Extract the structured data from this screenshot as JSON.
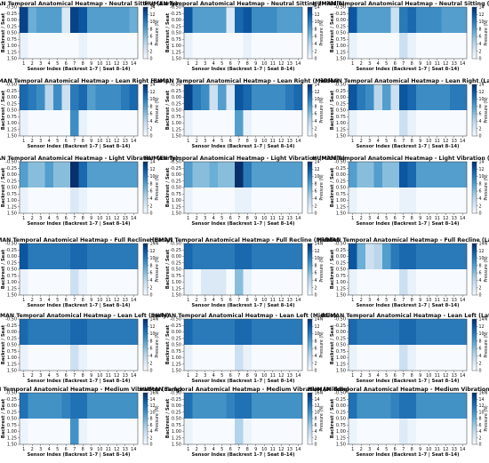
{
  "figure": {
    "xlabel": "Sensor Index (Backrest 1–7 | Seat 8–14)",
    "ylabel": "Backrest / Seat",
    "colorbar_label": "Pressure (N)",
    "colormap": [
      "#f7fbff",
      "#deebf7",
      "#c6dbef",
      "#9ecae1",
      "#6baed6",
      "#4292c6",
      "#2171b5",
      "#08519c",
      "#08306b"
    ],
    "x_ticks": [
      "1",
      "2",
      "3",
      "4",
      "5",
      "6",
      "7",
      "8",
      "9",
      "10",
      "11",
      "12",
      "13",
      "14"
    ],
    "y_ticks": [
      "-0.50",
      "-0.25",
      "0.00",
      "0.25",
      "0.50",
      "0.75",
      "1.00",
      "1.25",
      "1.50"
    ]
  },
  "chart_data": [
    {
      "type": "heatmap",
      "title": "HUMAN Temporal Anatomical Heatmap - Neutral Sitting (Early)",
      "colorbar_ticks": [
        "0",
        "2",
        "4",
        "6",
        "8",
        "10",
        "12",
        "14"
      ],
      "vmax": 14,
      "rows": [
        [
          13,
          7,
          8,
          8,
          8,
          2,
          13,
          12,
          8,
          8,
          8,
          8,
          8,
          7
        ],
        [
          1,
          0,
          0,
          0,
          0,
          0,
          0,
          1,
          0,
          0,
          0,
          0,
          0,
          0
        ]
      ]
    },
    {
      "type": "heatmap",
      "title": "HUMAN Temporal Anatomical Heatmap - Neutral Sitting (Middle)",
      "colorbar_ticks": [
        "0",
        "2",
        "4",
        "6",
        "8",
        "10",
        "12",
        "14"
      ],
      "vmax": 14,
      "rows": [
        [
          12,
          8,
          8,
          8,
          8,
          2,
          11,
          12,
          9,
          9,
          9,
          8,
          8,
          8
        ],
        [
          1,
          0,
          0,
          0,
          0,
          0,
          0,
          1,
          0,
          0,
          0,
          0,
          0,
          0
        ]
      ]
    },
    {
      "type": "heatmap",
      "title": "HUMAN Temporal Anatomical Heatmap - Neutral Sitting (Late)",
      "colorbar_ticks": [
        "0",
        "2",
        "4",
        "6",
        "8",
        "10",
        "12",
        "14"
      ],
      "vmax": 14,
      "rows": [
        [
          12,
          8,
          8,
          8,
          8,
          3,
          10,
          11,
          9,
          9,
          9,
          8,
          8,
          8
        ],
        [
          1,
          0,
          0,
          0,
          0,
          0,
          3,
          1,
          0,
          0,
          0,
          0,
          0,
          0
        ]
      ]
    },
    {
      "type": "heatmap",
      "title": "HUMAN Temporal Anatomical Heatmap - Lean Right (Early)",
      "colorbar_ticks": [
        "0",
        "2",
        "4",
        "6",
        "8",
        "10",
        "12",
        "14"
      ],
      "vmax": 14,
      "rows": [
        [
          11,
          10,
          9,
          4,
          9,
          3,
          10,
          11,
          8,
          9,
          9,
          9,
          10,
          11
        ],
        [
          1,
          0,
          0,
          0,
          0,
          0,
          9,
          1,
          0,
          0,
          0,
          0,
          0,
          0
        ]
      ]
    },
    {
      "type": "heatmap",
      "title": "HUMAN Temporal Anatomical Heatmap - Lean Right (Middle)",
      "colorbar_ticks": [
        "0",
        "2",
        "4",
        "6",
        "8",
        "10",
        "12",
        "14"
      ],
      "vmax": 14,
      "rows": [
        [
          13,
          10,
          9,
          3,
          8,
          2,
          12,
          11,
          9,
          9,
          9,
          9,
          10,
          11
        ],
        [
          1,
          0,
          0,
          0,
          0,
          0,
          8,
          1,
          0,
          0,
          0,
          0,
          0,
          0
        ]
      ]
    },
    {
      "type": "heatmap",
      "title": "HUMAN Temporal Anatomical Heatmap - Lean Right (Late)",
      "colorbar_ticks": [
        "0",
        "2",
        "4",
        "6",
        "8",
        "10",
        "12",
        "14"
      ],
      "vmax": 14,
      "rows": [
        [
          12,
          10,
          9,
          4,
          8,
          3,
          12,
          11,
          9,
          9,
          9,
          9,
          10,
          10
        ],
        [
          1,
          0,
          0,
          0,
          0,
          0,
          3,
          1,
          0,
          0,
          0,
          0,
          0,
          0
        ]
      ]
    },
    {
      "type": "heatmap",
      "title": "HUMAN Temporal Anatomical Heatmap - Light Vibration (Early)",
      "colorbar_ticks": [
        "0",
        "2",
        "4",
        "6",
        "8",
        "10",
        "12",
        "14"
      ],
      "vmax": 14,
      "rows": [
        [
          8,
          6,
          6,
          8,
          6,
          6,
          14,
          11,
          8,
          8,
          8,
          8,
          8,
          8
        ],
        [
          1,
          0,
          0,
          0,
          0,
          0,
          2,
          1,
          0,
          0,
          0,
          0,
          0,
          0
        ]
      ]
    },
    {
      "type": "heatmap",
      "title": "HUMAN Temporal Anatomical Heatmap - Light Vibration (Middle)",
      "colorbar_ticks": [
        "0",
        "2",
        "4",
        "6",
        "8",
        "10",
        "12",
        "14"
      ],
      "vmax": 14,
      "rows": [
        [
          8,
          6,
          6,
          7,
          6,
          6,
          14,
          10,
          8,
          8,
          8,
          8,
          8,
          8
        ],
        [
          1,
          0,
          0,
          0,
          0,
          0,
          1,
          1,
          0,
          0,
          0,
          0,
          0,
          0
        ]
      ]
    },
    {
      "type": "heatmap",
      "title": "HUMAN Temporal Anatomical Heatmap - Light Vibration (Late)",
      "colorbar_ticks": [
        "0",
        "2",
        "4",
        "6",
        "8",
        "10",
        "12",
        "14"
      ],
      "vmax": 14,
      "rows": [
        [
          8,
          6,
          6,
          8,
          6,
          6,
          12,
          11,
          8,
          8,
          8,
          8,
          8,
          8
        ],
        [
          1,
          0,
          0,
          0,
          0,
          0,
          1,
          1,
          0,
          0,
          0,
          0,
          0,
          0
        ]
      ]
    },
    {
      "type": "heatmap",
      "title": "HUMAN Temporal Anatomical Heatmap - Full Recline (Early)",
      "colorbar_ticks": [
        "14N",
        "12",
        "10",
        "8",
        "6",
        "4",
        "2",
        "0"
      ],
      "vmax": 14,
      "rows": [
        [
          12,
          10,
          10,
          10,
          10,
          10,
          11,
          11,
          10,
          10,
          10,
          10,
          10,
          10
        ],
        [
          1,
          0,
          0,
          0,
          0,
          0,
          3,
          1,
          0,
          0,
          0,
          0,
          0,
          0
        ]
      ]
    },
    {
      "type": "heatmap",
      "title": "HUMAN Temporal Anatomical Heatmap - Full Recline (Middle)",
      "colorbar_ticks": [
        "14N",
        "12",
        "10",
        "8",
        "6",
        "4",
        "2",
        "0"
      ],
      "vmax": 14,
      "rows": [
        [
          11,
          10,
          10,
          10,
          10,
          10,
          11,
          11,
          10,
          10,
          10,
          10,
          10,
          10
        ],
        [
          1,
          0,
          2,
          2,
          2,
          0,
          6,
          1,
          0,
          0,
          0,
          0,
          0,
          0
        ]
      ]
    },
    {
      "type": "heatmap",
      "title": "HUMAN Temporal Anatomical Heatmap - Full Recline (Late)",
      "colorbar_ticks": [
        "14N",
        "12",
        "10",
        "8",
        "6",
        "4",
        "2",
        "0"
      ],
      "vmax": 14,
      "rows": [
        [
          12,
          7,
          3,
          4,
          8,
          10,
          11,
          11,
          10,
          10,
          10,
          10,
          10,
          10
        ],
        [
          1,
          0,
          0,
          0,
          0,
          0,
          3,
          1,
          0,
          0,
          0,
          0,
          0,
          0
        ]
      ]
    },
    {
      "type": "heatmap",
      "title": "HUMAN Temporal Anatomical Heatmap - Lean Left (Early)",
      "colorbar_ticks": [
        "14N",
        "12",
        "10",
        "8",
        "6",
        "4",
        "2",
        "0"
      ],
      "vmax": 14,
      "rows": [
        [
          11,
          10,
          10,
          10,
          10,
          10,
          11,
          11,
          10,
          10,
          10,
          10,
          10,
          10
        ],
        [
          1,
          0,
          0,
          0,
          0,
          0,
          3,
          1,
          0,
          0,
          0,
          0,
          0,
          0
        ]
      ]
    },
    {
      "type": "heatmap",
      "title": "HUMAN Temporal Anatomical Heatmap - Lean Left (Middle)",
      "colorbar_ticks": [
        "14N",
        "12",
        "10",
        "8",
        "6",
        "4",
        "2",
        "0"
      ],
      "vmax": 14,
      "rows": [
        [
          11,
          10,
          10,
          10,
          10,
          10,
          11,
          11,
          10,
          10,
          10,
          10,
          10,
          10
        ],
        [
          1,
          0,
          0,
          0,
          0,
          0,
          3,
          1,
          0,
          0,
          0,
          0,
          0,
          0
        ]
      ]
    },
    {
      "type": "heatmap",
      "title": "HUMAN Temporal Anatomical Heatmap - Lean Left (Late)",
      "colorbar_ticks": [
        "14N",
        "12",
        "10",
        "8",
        "6",
        "4",
        "2",
        "0"
      ],
      "vmax": 14,
      "rows": [
        [
          11,
          10,
          10,
          10,
          10,
          10,
          11,
          11,
          10,
          10,
          10,
          10,
          10,
          10
        ],
        [
          1,
          0,
          0,
          0,
          0,
          0,
          3,
          1,
          0,
          0,
          0,
          0,
          0,
          0
        ]
      ]
    },
    {
      "type": "heatmap",
      "title": "HUMAN Temporal Anatomical Heatmap - Medium Vibration (Early)",
      "colorbar_ticks": [
        "16N",
        "14",
        "12",
        "10",
        "8",
        "6",
        "4",
        "2",
        "0"
      ],
      "vmax": 16,
      "rows": [
        [
          12,
          10,
          10,
          10,
          10,
          11,
          12,
          12,
          10,
          10,
          10,
          10,
          10,
          10
        ],
        [
          1,
          0,
          0,
          0,
          0,
          0,
          10,
          1,
          0,
          0,
          0,
          0,
          0,
          0
        ]
      ]
    },
    {
      "type": "heatmap",
      "title": "HUMAN Temporal Anatomical Heatmap - Medium Vibration (Middle)",
      "colorbar_ticks": [
        "16N",
        "14",
        "12",
        "10",
        "8",
        "6",
        "4",
        "2",
        "0"
      ],
      "vmax": 16,
      "rows": [
        [
          12,
          10,
          10,
          10,
          10,
          11,
          12,
          12,
          10,
          10,
          10,
          10,
          10,
          10
        ],
        [
          1,
          0,
          0,
          0,
          0,
          0,
          5,
          1,
          0,
          0,
          0,
          0,
          0,
          0
        ]
      ]
    },
    {
      "type": "heatmap",
      "title": "HUMAN Temporal Anatomical Heatmap - Medium Vibration (Late)",
      "colorbar_ticks": [
        "16N",
        "14",
        "12",
        "10",
        "8",
        "6",
        "4",
        "2",
        "0"
      ],
      "vmax": 16,
      "rows": [
        [
          12,
          10,
          10,
          10,
          10,
          11,
          12,
          12,
          10,
          10,
          10,
          10,
          10,
          10
        ],
        [
          1,
          0,
          0,
          0,
          0,
          0,
          2,
          1,
          0,
          0,
          0,
          0,
          0,
          0
        ]
      ]
    }
  ]
}
